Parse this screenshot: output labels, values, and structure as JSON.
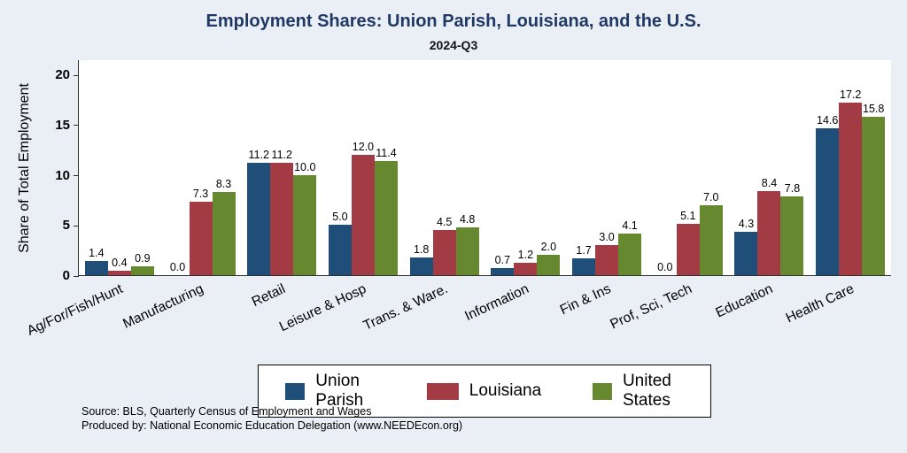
{
  "title": "Employment Shares: Union Parish, Louisiana, and the U.S.",
  "subtitle": "2024-Q3",
  "source_line1": "Source: BLS, Quarterly Census of Employment and Wages",
  "source_line2": "Produced by: National Economic Education Delegation (www.NEEDEcon.org)",
  "colors": {
    "background": "#e9eff5",
    "plot_background": "#ffffff",
    "title_text": "#1f3864",
    "union_parish": "#1f4e79",
    "louisiana": "#a23b44",
    "united_states": "#66882f"
  },
  "chart_data": {
    "type": "bar",
    "title": "Employment Shares: Union Parish, Louisiana, and the U.S.",
    "subtitle": "2024-Q3",
    "xlabel": "",
    "ylabel": "Share of Total Employment",
    "ylim": [
      0,
      20
    ],
    "yticks": [
      0,
      5,
      10,
      15,
      20
    ],
    "grid": false,
    "legend_position": "bottom",
    "categories": [
      "Ag/For/Fish/Hunt",
      "Manufacturing",
      "Retail",
      "Leisure & Hosp",
      "Trans. & Ware.",
      "Information",
      "Fin & Ins",
      "Prof, Sci, Tech",
      "Education",
      "Health Care"
    ],
    "series": [
      {
        "name": "Union Parish",
        "color": "#1f4e79",
        "values": [
          1.4,
          0.0,
          11.2,
          5.0,
          1.8,
          0.7,
          1.7,
          0.0,
          4.3,
          14.6
        ]
      },
      {
        "name": "Louisiana",
        "color": "#a23b44",
        "values": [
          0.4,
          7.3,
          11.2,
          12.0,
          4.5,
          1.2,
          3.0,
          5.1,
          8.4,
          17.2
        ]
      },
      {
        "name": "United States",
        "color": "#66882f",
        "values": [
          0.9,
          8.3,
          10.0,
          11.4,
          4.8,
          2.0,
          4.1,
          7.0,
          7.8,
          15.8
        ]
      }
    ]
  }
}
